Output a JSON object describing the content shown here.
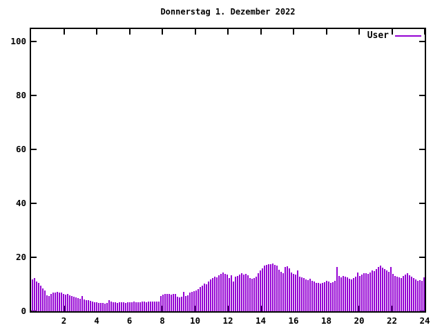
{
  "chart_data": {
    "type": "bar",
    "title": "Donnerstag 1. Dezember 2022",
    "legend": {
      "label": "User",
      "position": "top-right-inside"
    },
    "x": {
      "min": 0,
      "max": 24,
      "ticks": [
        2,
        4,
        6,
        8,
        10,
        12,
        14,
        16,
        18,
        20,
        22,
        24
      ]
    },
    "y": {
      "min": 0,
      "max": 100,
      "ticks": [
        0,
        20,
        40,
        60,
        80,
        100
      ]
    },
    "grid": false,
    "axis_color": "#000000",
    "series": [
      {
        "name": "User",
        "color": "#9400d3",
        "note": "190 evenly spaced samples across 00:00-24:00",
        "values": [
          11.7,
          12.2,
          11.1,
          10.5,
          9.4,
          8.5,
          7.7,
          6.0,
          5.6,
          6.4,
          6.8,
          7.0,
          7.2,
          6.9,
          6.8,
          6.4,
          6.2,
          6.3,
          6.0,
          5.7,
          5.3,
          5.0,
          4.8,
          4.7,
          5.6,
          4.4,
          4.2,
          4.0,
          3.8,
          3.6,
          3.4,
          3.3,
          3.2,
          3.0,
          3.0,
          2.9,
          3.0,
          4.0,
          3.7,
          3.4,
          3.3,
          3.2,
          3.3,
          3.4,
          3.3,
          3.2,
          3.4,
          3.3,
          3.3,
          3.5,
          3.4,
          3.3,
          3.4,
          3.6,
          3.5,
          3.4,
          3.5,
          3.6,
          3.5,
          3.6,
          3.7,
          3.6,
          5.6,
          6.2,
          6.4,
          6.3,
          6.4,
          6.2,
          6.4,
          6.3,
          5.4,
          5.1,
          5.3,
          7.3,
          5.6,
          6.0,
          6.8,
          7.2,
          7.5,
          7.8,
          8.3,
          9.0,
          9.6,
          10.2,
          10.0,
          11.0,
          11.8,
          12.3,
          12.9,
          12.6,
          13.4,
          13.9,
          14.4,
          13.8,
          13.5,
          12.4,
          13.3,
          11.1,
          12.8,
          13.0,
          13.5,
          14.1,
          13.6,
          13.9,
          13.4,
          12.2,
          12.0,
          12.3,
          12.8,
          14.0,
          15.0,
          16.0,
          16.8,
          17.3,
          17.5,
          17.4,
          17.6,
          17.2,
          16.8,
          15.4,
          14.5,
          14.1,
          16.3,
          16.6,
          15.9,
          14.3,
          13.8,
          13.5,
          15.1,
          12.8,
          12.5,
          12.2,
          11.8,
          11.6,
          12.0,
          11.4,
          11.0,
          10.6,
          10.4,
          10.3,
          10.5,
          10.8,
          11.4,
          11.0,
          10.5,
          10.8,
          11.2,
          16.5,
          13.0,
          12.6,
          13.2,
          12.8,
          12.5,
          12.0,
          11.8,
          12.2,
          12.8,
          14.4,
          13.0,
          13.6,
          14.0,
          14.2,
          13.8,
          14.4,
          15.0,
          14.8,
          15.6,
          16.4,
          16.8,
          16.2,
          15.6,
          15.0,
          14.5,
          16.5,
          13.8,
          13.2,
          12.8,
          12.5,
          12.2,
          13.0,
          13.6,
          14.0,
          13.4,
          12.8,
          12.2,
          11.8,
          11.4,
          11.6,
          11.2,
          12.6
        ]
      }
    ]
  }
}
